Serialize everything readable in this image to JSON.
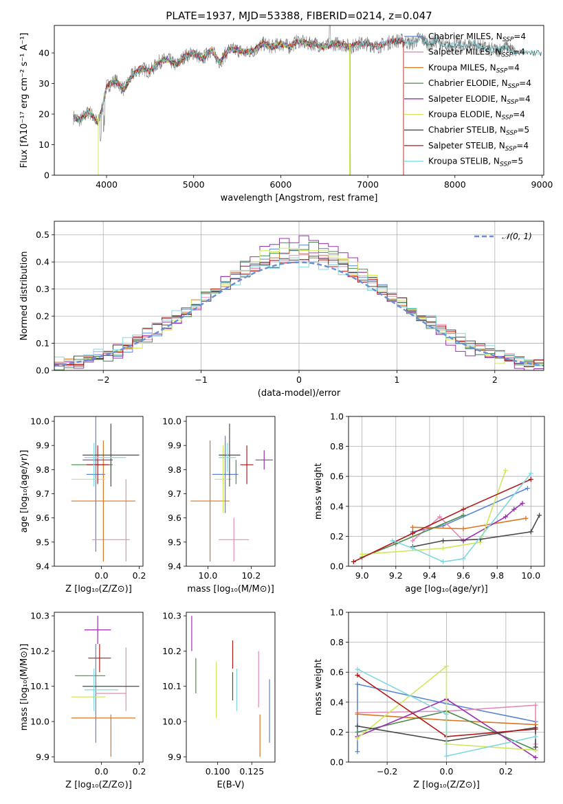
{
  "colors": {
    "chabrier_miles": "#5b86d6",
    "salpeter_miles": "#e58ab8",
    "kroupa_miles": "#d9741f",
    "chabrier_elodie": "#4c8a4c",
    "salpeter_elodie": "#9a2fb0",
    "kroupa_elodie": "#cfe85a",
    "chabrier_stelib": "#4a4a4a",
    "salpeter_stelib": "#b01818",
    "kroupa_stelib": "#7fd8e0",
    "normal": "#6a8fd8",
    "grid": "#b0b0b0"
  },
  "chart_data": [
    {
      "id": "spectrum",
      "type": "line",
      "title": "PLATE=1937, MJD=53388, FIBERID=0214, z=0.047",
      "xlabel": "wavelength [Angstrom, rest frame]",
      "ylabel": "Flux [fλ10⁻¹⁷ erg cm⁻² s⁻¹ A⁻¹]",
      "xlim": [
        3400,
        9020
      ],
      "ylim": [
        0,
        49
      ],
      "xticks": [
        "4000",
        "5000",
        "6000",
        "7000",
        "8000",
        "9000"
      ],
      "yticks": [
        "0",
        "10",
        "20",
        "30",
        "40"
      ],
      "grid": false,
      "legend_position": "upper-right",
      "legend": [
        {
          "key": "chabrier_miles",
          "label": "Chabrier MILES, N",
          "sub": "SSP",
          "suffix": "=4"
        },
        {
          "key": "salpeter_miles",
          "label": "Salpeter MILES, N",
          "sub": "SSP",
          "suffix": "=4"
        },
        {
          "key": "kroupa_miles",
          "label": "Kroupa MILES, N",
          "sub": "SSP",
          "suffix": "=4"
        },
        {
          "key": "chabrier_elodie",
          "label": "Chabrier ELODIE, N",
          "sub": "SSP",
          "suffix": "=4"
        },
        {
          "key": "salpeter_elodie",
          "label": "Salpeter ELODIE, N",
          "sub": "SSP",
          "suffix": "=4"
        },
        {
          "key": "kroupa_elodie",
          "label": "Kroupa ELODIE, N",
          "sub": "SSP",
          "suffix": "=4"
        },
        {
          "key": "chabrier_stelib",
          "label": "Chabrier STELIB, N",
          "sub": "SSP",
          "suffix": "=5"
        },
        {
          "key": "salpeter_stelib",
          "label": "Salpeter STELIB, N",
          "sub": "SSP",
          "suffix": "=4"
        },
        {
          "key": "kroupa_stelib",
          "label": "Kroupa STELIB, N",
          "sub": "SSP",
          "suffix": "=5"
        }
      ],
      "continuum": {
        "x": [
          3620,
          3700,
          3800,
          3900,
          3950,
          4000,
          4100,
          4200,
          4300,
          4400,
          4500,
          4600,
          4700,
          4800,
          4900,
          5000,
          5100,
          5200,
          5300,
          5400,
          5500,
          5600,
          5700,
          5800,
          5900,
          6000,
          6100,
          6200,
          6300,
          6400,
          6500,
          6600,
          6700,
          6800,
          6900,
          7000,
          7100,
          7200,
          7300,
          7400,
          7500,
          7600,
          7700,
          7800,
          7900,
          8000,
          8100,
          8200,
          8300,
          8400,
          8500,
          8600,
          8700
        ],
        "y": [
          19,
          18,
          21,
          17,
          22,
          29,
          31,
          28,
          33,
          35,
          34,
          37,
          38,
          36,
          39,
          40,
          38,
          41,
          37,
          41,
          41,
          40,
          41,
          43,
          42,
          43,
          42,
          44,
          43,
          43,
          42,
          43,
          43,
          42,
          43,
          43,
          42,
          43,
          44,
          44,
          43,
          45,
          43,
          44,
          42,
          43,
          42,
          43,
          42,
          41,
          41,
          42,
          40
        ]
      },
      "model_end": {
        "chabrier_miles": 7410,
        "salpeter_miles": 7410,
        "kroupa_miles": 7410,
        "chabrier_elodie": 6800,
        "salpeter_elodie": 6800,
        "kroupa_elodie": 6800,
        "chabrier_stelib": 9000,
        "salpeter_stelib": 7410,
        "kroupa_stelib": 9000
      }
    },
    {
      "id": "residuals",
      "type": "histogram",
      "xlabel": "(data-model)/error",
      "ylabel": "Normed distribution",
      "xlim": [
        -2.5,
        2.5
      ],
      "ylim": [
        0,
        0.55
      ],
      "xticks": [
        "−2",
        "−1",
        "0",
        "1",
        "2"
      ],
      "yticks": [
        "0.0",
        "0.1",
        "0.2",
        "0.3",
        "0.4",
        "0.5"
      ],
      "grid": true,
      "legend_position": "upper-right",
      "legend": "𝒩(0, 1)",
      "bin_width": 0.1,
      "reference_curve": "N(0,1) pdf",
      "spread": {
        "chabrier_miles": 0.96,
        "salpeter_miles": 1.02,
        "kroupa_miles": 1.0,
        "chabrier_elodie": 0.93,
        "salpeter_elodie": 0.9,
        "kroupa_elodie": 0.95,
        "chabrier_stelib": 1.05,
        "salpeter_stelib": 1.03,
        "kroupa_stelib": 1.08
      }
    },
    {
      "id": "age_vs_Z",
      "type": "errorbar",
      "xlabel": "Z [log₁₀(Z/Z⊙)]",
      "ylabel": "age  [log₁₀(age/yr)]",
      "xlim": [
        -0.25,
        0.22
      ],
      "ylim": [
        9.4,
        10.02
      ],
      "xticks": [
        "0.0",
        "0.2"
      ],
      "yticks": [
        "9.4",
        "9.5",
        "9.6",
        "9.7",
        "9.8",
        "9.9",
        "10.0"
      ],
      "points": [
        {
          "key": "chabrier_miles",
          "x": -0.03,
          "xe": 0.05,
          "y": 9.78,
          "ye": 0.32
        },
        {
          "key": "salpeter_miles",
          "x": 0.05,
          "xe": 0.1,
          "y": 9.51,
          "ye": 0.0
        },
        {
          "key": "salpeter_miles",
          "x": 0.13,
          "xe": 0.0,
          "y": 9.59,
          "ye": 0.17
        },
        {
          "key": "kroupa_miles",
          "x": 0.01,
          "xe": 0.17,
          "y": 9.67,
          "ye": 0.25
        },
        {
          "key": "chabrier_elodie",
          "x": -0.05,
          "xe": 0.11,
          "y": 9.82,
          "ye": 0.0
        },
        {
          "key": "salpeter_elodie",
          "x": -0.02,
          "xe": 0.08,
          "y": 9.84,
          "ye": 0.0
        },
        {
          "key": "kroupa_elodie",
          "x": -0.07,
          "xe": 0.09,
          "y": 9.76,
          "ye": 0.0
        },
        {
          "key": "chabrier_stelib",
          "x": 0.05,
          "xe": 0.15,
          "y": 9.86,
          "ye": 0.13
        },
        {
          "key": "salpeter_stelib",
          "x": -0.02,
          "xe": 0.06,
          "y": 9.82,
          "ye": 0.08
        },
        {
          "key": "kroupa_stelib",
          "x": 0.02,
          "xe": 0.11,
          "y": 9.85,
          "ye": 0.0
        },
        {
          "key": "kroupa_stelib",
          "x": -0.04,
          "xe": 0.0,
          "y": 9.82,
          "ye": 0.09
        }
      ]
    },
    {
      "id": "age_vs_mass",
      "type": "errorbar",
      "xlabel": "mass [log₁₀(M/M⊙)]",
      "ylabel": "",
      "xlim": [
        9.9,
        10.31
      ],
      "ylim": [
        9.4,
        10.02
      ],
      "xticks": [
        "10.0",
        "10.2"
      ],
      "yticks": [
        "9.4",
        "9.5",
        "9.6",
        "9.7",
        "9.8",
        "9.9",
        "10.0"
      ],
      "points": [
        {
          "key": "chabrier_miles",
          "x": 10.08,
          "xe": 0.06,
          "y": 9.78,
          "ye": 0.16
        },
        {
          "key": "salpeter_miles",
          "x": 10.12,
          "xe": 0.07,
          "y": 9.51,
          "ye": 0.09
        },
        {
          "key": "kroupa_miles",
          "x": 10.01,
          "xe": 0.09,
          "y": 9.67,
          "ye": 0.25
        },
        {
          "key": "chabrier_elodie",
          "x": 10.13,
          "xe": 0.0,
          "y": 9.79,
          "ye": 0.05
        },
        {
          "key": "salpeter_elodie",
          "x": 10.26,
          "xe": 0.04,
          "y": 9.84,
          "ye": 0.04
        },
        {
          "key": "kroupa_elodie",
          "x": 10.07,
          "xe": 0.04,
          "y": 9.76,
          "ye": 0.14
        },
        {
          "key": "chabrier_stelib",
          "x": 10.1,
          "xe": 0.05,
          "y": 9.86,
          "ye": 0.13
        },
        {
          "key": "salpeter_stelib",
          "x": 10.18,
          "xe": 0.03,
          "y": 9.82,
          "ye": 0.08
        },
        {
          "key": "kroupa_stelib",
          "x": 10.09,
          "xe": 0.04,
          "y": 9.85,
          "ye": 0.06
        }
      ]
    },
    {
      "id": "weight_vs_age",
      "type": "line",
      "xlabel": "age  [log₁₀(age/yr)]",
      "ylabel": "mass weight",
      "xlim": [
        8.92,
        10.08
      ],
      "ylim": [
        0,
        1.0
      ],
      "xticks": [
        "9.0",
        "9.2",
        "9.4",
        "9.6",
        "9.8",
        "10.0"
      ],
      "yticks": [
        "0.0",
        "0.2",
        "0.4",
        "0.6",
        "0.8",
        "1.0"
      ],
      "grid": true,
      "series": [
        {
          "key": "chabrier_miles",
          "x": [
            9.3,
            9.48,
            9.98
          ],
          "y": [
            0.23,
            0.27,
            0.52
          ]
        },
        {
          "key": "salpeter_miles",
          "x": [
            9.3,
            9.46,
            9.6
          ],
          "y": [
            0.17,
            0.33,
            0.17
          ]
        },
        {
          "key": "kroupa_miles",
          "x": [
            9.3,
            9.6,
            9.97
          ],
          "y": [
            0.26,
            0.25,
            0.32
          ]
        },
        {
          "key": "chabrier_elodie",
          "x": [
            9.0,
            9.2,
            9.6
          ],
          "y": [
            0.06,
            0.15,
            0.34
          ]
        },
        {
          "key": "salpeter_elodie",
          "x": [
            9.6,
            9.85,
            9.9,
            9.95
          ],
          "y": [
            0.17,
            0.33,
            0.38,
            0.42
          ]
        },
        {
          "key": "kroupa_elodie",
          "x": [
            9.0,
            9.48,
            9.7,
            9.85
          ],
          "y": [
            0.08,
            0.12,
            0.16,
            0.64
          ]
        },
        {
          "key": "chabrier_stelib",
          "x": [
            9.3,
            9.48,
            9.7,
            10.0,
            10.05
          ],
          "y": [
            0.13,
            0.17,
            0.18,
            0.23,
            0.34
          ]
        },
        {
          "key": "salpeter_stelib",
          "x": [
            8.95,
            9.3,
            9.6,
            10.0
          ],
          "y": [
            0.03,
            0.22,
            0.38,
            0.58
          ]
        },
        {
          "key": "kroupa_stelib",
          "x": [
            9.18,
            9.3,
            9.48,
            9.6,
            10.0
          ],
          "y": [
            0.17,
            0.12,
            0.03,
            0.05,
            0.62
          ]
        }
      ]
    },
    {
      "id": "mass_vs_Z",
      "type": "errorbar",
      "xlabel": "Z [log₁₀(Z/Z⊙)]",
      "ylabel": "mass [log₁₀(M/M⊙)]",
      "xlim": [
        -0.25,
        0.22
      ],
      "ylim": [
        9.885,
        10.31
      ],
      "xticks": [
        "0.0",
        "0.2"
      ],
      "yticks": [
        "9.9",
        "10.0",
        "10.1",
        "10.2",
        "10.3"
      ],
      "points": [
        {
          "key": "chabrier_miles",
          "x": -0.03,
          "xe": 0.0,
          "y": 10.08,
          "ye": 0.14
        },
        {
          "key": "salpeter_miles",
          "x": 0.13,
          "xe": 0.0,
          "y": 10.12,
          "ye": 0.09
        },
        {
          "key": "salpeter_miles",
          "x": 0.05,
          "xe": 0.08,
          "y": 10.08,
          "ye": 0.0
        },
        {
          "key": "kroupa_miles",
          "x": 0.01,
          "xe": 0.17,
          "y": 10.01,
          "ye": 0.0
        },
        {
          "key": "kroupa_miles",
          "x": 0.05,
          "xe": 0.0,
          "y": 9.96,
          "ye": 0.06
        },
        {
          "key": "chabrier_elodie",
          "x": -0.06,
          "xe": 0.08,
          "y": 10.13,
          "ye": 0.0
        },
        {
          "key": "salpeter_elodie",
          "x": -0.02,
          "xe": 0.07,
          "y": 10.26,
          "ye": 0.04
        },
        {
          "key": "kroupa_elodie",
          "x": -0.07,
          "xe": 0.09,
          "y": 10.07,
          "ye": 0.0
        },
        {
          "key": "chabrier_stelib",
          "x": 0.05,
          "xe": 0.15,
          "y": 10.1,
          "ye": 0.0
        },
        {
          "key": "salpeter_stelib",
          "x": -0.01,
          "xe": 0.06,
          "y": 10.18,
          "ye": 0.04
        },
        {
          "key": "kroupa_stelib",
          "x": 0.0,
          "xe": 0.09,
          "y": 10.09,
          "ye": 0.0
        },
        {
          "key": "kroupa_stelib",
          "x": -0.04,
          "xe": 0.0,
          "y": 10.09,
          "ye": 0.06
        }
      ]
    },
    {
      "id": "mass_vs_EBV",
      "type": "errorbar",
      "xlabel": "E(B-V)",
      "ylabel": "",
      "xlim": [
        0.077,
        0.142
      ],
      "ylim": [
        9.885,
        10.31
      ],
      "xticks": [
        "0.100",
        "0.125"
      ],
      "yticks": [
        "9.9",
        "10.0",
        "10.1",
        "10.2",
        "10.3"
      ],
      "points": [
        {
          "key": "salpeter_elodie",
          "x": 0.081,
          "xe": 0.0,
          "y": 10.25,
          "ye": 0.05
        },
        {
          "key": "chabrier_elodie",
          "x": 0.084,
          "xe": 0.0,
          "y": 10.13,
          "ye": 0.05
        },
        {
          "key": "kroupa_elodie",
          "x": 0.099,
          "xe": 0.0,
          "y": 10.09,
          "ye": 0.08
        },
        {
          "key": "salpeter_stelib",
          "x": 0.111,
          "xe": 0.0,
          "y": 10.19,
          "ye": 0.04
        },
        {
          "key": "chabrier_stelib",
          "x": 0.111,
          "xe": 0.0,
          "y": 10.1,
          "ye": 0.04
        },
        {
          "key": "kroupa_stelib",
          "x": 0.114,
          "xe": 0.0,
          "y": 10.09,
          "ye": 0.06
        },
        {
          "key": "salpeter_miles",
          "x": 0.13,
          "xe": 0.0,
          "y": 10.12,
          "ye": 0.08
        },
        {
          "key": "kroupa_miles",
          "x": 0.131,
          "xe": 0.0,
          "y": 9.96,
          "ye": 0.06
        },
        {
          "key": "chabrier_miles",
          "x": 0.138,
          "xe": 0.0,
          "y": 10.03,
          "ye": 0.09
        }
      ]
    },
    {
      "id": "weight_vs_Z",
      "type": "line",
      "xlabel": "Z [log₁₀(Z/Z⊙)]",
      "ylabel": "mass weight",
      "xlim": [
        -0.33,
        0.33
      ],
      "ylim": [
        0,
        1.0
      ],
      "xticks": [
        "−0.2",
        "0.0",
        "0.2"
      ],
      "yticks": [
        "0.0",
        "0.2",
        "0.4",
        "0.6",
        "0.8",
        "1.0"
      ],
      "grid": true,
      "series": [
        {
          "key": "chabrier_miles",
          "x": [
            -0.3,
            -0.3,
            0.0,
            0.3
          ],
          "y": [
            0.07,
            0.52,
            0.39,
            0.27
          ]
        },
        {
          "key": "salpeter_miles",
          "x": [
            -0.3,
            0.0,
            0.3,
            0.3
          ],
          "y": [
            0.33,
            0.34,
            0.38,
            0.12
          ]
        },
        {
          "key": "kroupa_miles",
          "x": [
            -0.3,
            0.0,
            0.3
          ],
          "y": [
            0.32,
            0.28,
            0.25
          ]
        },
        {
          "key": "chabrier_elodie",
          "x": [
            -0.3,
            0.0,
            0.3
          ],
          "y": [
            0.2,
            0.34,
            0.08
          ]
        },
        {
          "key": "salpeter_elodie",
          "x": [
            -0.3,
            0.0,
            0.3
          ],
          "y": [
            0.17,
            0.42,
            0.03
          ]
        },
        {
          "key": "kroupa_elodie",
          "x": [
            -0.3,
            0.0,
            0.0,
            0.3
          ],
          "y": [
            0.16,
            0.64,
            0.12,
            0.08
          ]
        },
        {
          "key": "chabrier_stelib",
          "x": [
            -0.3,
            0.0,
            0.3,
            0.3
          ],
          "y": [
            0.24,
            0.14,
            0.23,
            0.1
          ]
        },
        {
          "key": "salpeter_stelib",
          "x": [
            -0.3,
            0.0,
            0.3
          ],
          "y": [
            0.58,
            0.17,
            0.22
          ]
        },
        {
          "key": "kroupa_stelib",
          "x": [
            -0.3,
            0.0,
            0.0,
            0.3
          ],
          "y": [
            0.62,
            0.32,
            0.04,
            0.17
          ]
        }
      ]
    }
  ]
}
